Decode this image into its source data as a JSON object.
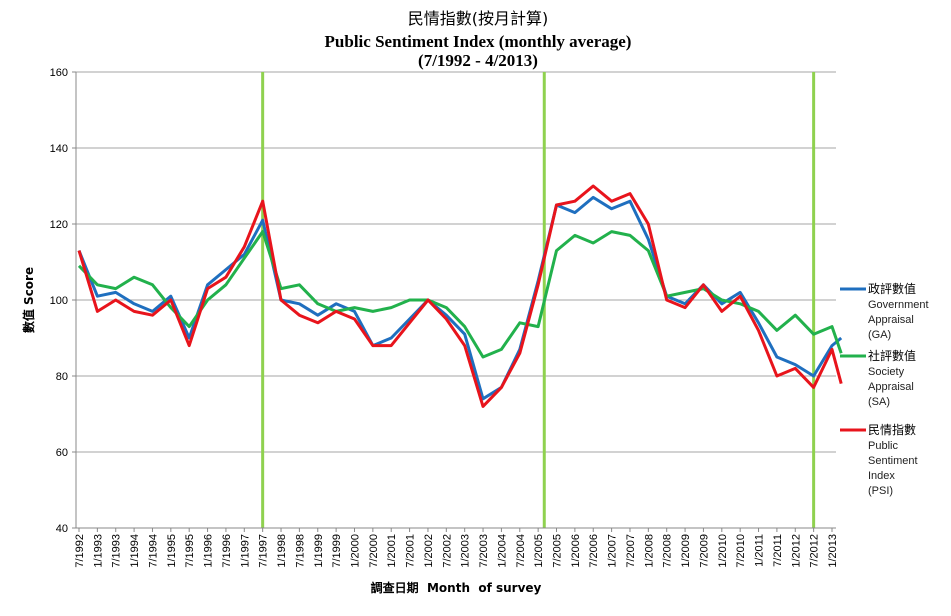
{
  "chart_data": {
    "type": "line",
    "title": "民情指數(按月計算)",
    "subtitle": "Public Sentiment Index (monthly average)",
    "period": "(7/1992 - 4/2013)",
    "xlabel": "調查日期  Month  of survey",
    "ylabel": "數值 Score",
    "ylim": [
      40,
      160
    ],
    "yticks": [
      "40",
      "60",
      "80",
      "100",
      "120",
      "140",
      "160"
    ],
    "xticks": [
      "7/1992",
      "1/1993",
      "7/1993",
      "1/1994",
      "7/1994",
      "1/1995",
      "7/1995",
      "1/1996",
      "7/1996",
      "1/1997",
      "7/1997",
      "1/1998",
      "7/1998",
      "1/1999",
      "7/1999",
      "1/2000",
      "7/2000",
      "1/2001",
      "7/2001",
      "1/2002",
      "7/2002",
      "1/2003",
      "7/2003",
      "1/2004",
      "7/2004",
      "1/2005",
      "7/2005",
      "1/2006",
      "7/2006",
      "1/2007",
      "7/2007",
      "1/2008",
      "7/2008",
      "1/2009",
      "7/2009",
      "1/2010",
      "7/2010",
      "1/2011",
      "7/2011",
      "1/2012",
      "7/2012",
      "1/2013"
    ],
    "grid": "horizontal",
    "legend_position": "right",
    "vertical_markers": [
      "7/1997",
      "3/2005",
      "7/2012"
    ],
    "x_anchor_months": [
      "7/1992",
      "1/1993",
      "7/1993",
      "1/1994",
      "7/1994",
      "1/1995",
      "7/1995",
      "1/1996",
      "7/1996",
      "1/1997",
      "7/1997",
      "1/1998",
      "7/1998",
      "1/1999",
      "7/1999",
      "1/2000",
      "7/2000",
      "1/2001",
      "7/2001",
      "1/2002",
      "7/2002",
      "1/2003",
      "7/2003",
      "1/2004",
      "7/2004",
      "1/2005",
      "7/2005",
      "1/2006",
      "7/2006",
      "1/2007",
      "7/2007",
      "1/2008",
      "7/2008",
      "1/2009",
      "7/2009",
      "1/2010",
      "7/2010",
      "1/2011",
      "7/2011",
      "1/2012",
      "7/2012",
      "1/2013",
      "4/2013"
    ],
    "series": [
      {
        "name": "政評數值",
        "name_en": "Government Appraisal (GA)",
        "color": "#1f6fbf",
        "values": [
          113,
          101,
          102,
          99,
          97,
          101,
          90,
          104,
          108,
          112,
          121,
          100,
          99,
          96,
          99,
          97,
          88,
          90,
          95,
          100,
          96,
          91,
          74,
          77,
          87,
          105,
          125,
          123,
          127,
          124,
          126,
          116,
          101,
          99,
          104,
          99,
          102,
          94,
          85,
          83,
          80,
          88,
          90
        ]
      },
      {
        "name": "社評數值",
        "name_en": "Society Appraisal (SA)",
        "color": "#22b14c",
        "values": [
          109,
          104,
          103,
          106,
          104,
          98,
          93,
          100,
          104,
          111,
          118,
          103,
          104,
          99,
          97,
          98,
          97,
          98,
          100,
          100,
          98,
          93,
          85,
          87,
          94,
          93,
          113,
          117,
          115,
          118,
          117,
          113,
          101,
          102,
          103,
          100,
          99,
          97,
          92,
          96,
          91,
          93,
          86
        ]
      },
      {
        "name": "民情指數",
        "name_en": "Public Sentiment Index (PSI)",
        "color": "#e8141c",
        "values": [
          113,
          97,
          100,
          97,
          96,
          100,
          88,
          103,
          106,
          114,
          126,
          100,
          96,
          94,
          97,
          95,
          88,
          88,
          94,
          100,
          95,
          88,
          72,
          77,
          86,
          104,
          125,
          126,
          130,
          126,
          128,
          120,
          100,
          98,
          104,
          97,
          101,
          92,
          80,
          82,
          77,
          87,
          78
        ]
      }
    ]
  }
}
